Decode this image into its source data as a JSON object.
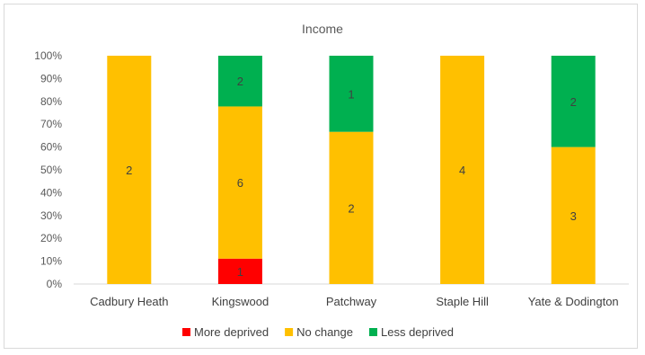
{
  "chart_data": {
    "type": "bar",
    "stacked": "percent",
    "title": "Income",
    "categories": [
      "Cadbury Heath",
      "Kingswood",
      "Patchway",
      "Staple Hill",
      "Yate & Dodington"
    ],
    "series": [
      {
        "name": "More deprived",
        "values": [
          0,
          1,
          0,
          0,
          0
        ],
        "color": "#ff0000"
      },
      {
        "name": "No change",
        "values": [
          2,
          6,
          2,
          4,
          3
        ],
        "color": "#ffc000"
      },
      {
        "name": "Less deprived",
        "values": [
          0,
          2,
          1,
          0,
          2
        ],
        "color": "#00b050"
      }
    ],
    "y_ticks": [
      "0%",
      "10%",
      "20%",
      "30%",
      "40%",
      "50%",
      "60%",
      "70%",
      "80%",
      "90%",
      "100%"
    ],
    "ylim": [
      0,
      100
    ],
    "grid": false,
    "legend_position": "bottom"
  }
}
